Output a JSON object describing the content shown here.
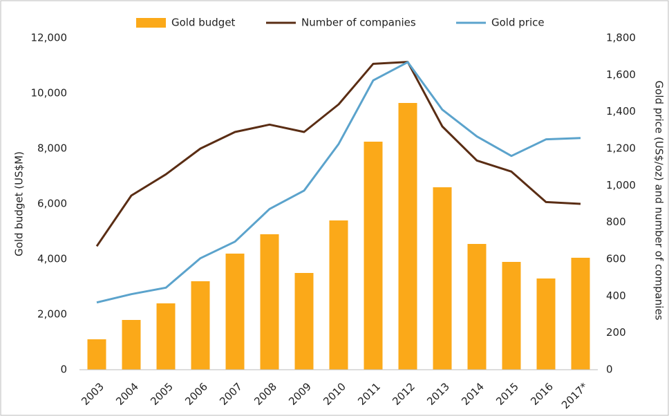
{
  "chart_data": {
    "type": "bar",
    "categories": [
      "2003",
      "2004",
      "2005",
      "2006",
      "2007",
      "2008",
      "2009",
      "2010",
      "2011",
      "2012",
      "2013",
      "2014",
      "2015",
      "2016",
      "2017*"
    ],
    "series": [
      {
        "name": "Gold budget",
        "type": "bar",
        "axis": "y",
        "color": "#fba919",
        "values": [
          1100,
          1800,
          2400,
          3200,
          4200,
          4900,
          3500,
          5400,
          8250,
          9650,
          6600,
          4550,
          3900,
          3300,
          4050
        ]
      },
      {
        "name": "Number of companies",
        "type": "line",
        "axis": "y2",
        "color": "#5a2d14",
        "values": [
          670,
          945,
          1060,
          1200,
          1290,
          1330,
          1290,
          1440,
          1660,
          1670,
          1320,
          1135,
          1075,
          910,
          900
        ]
      },
      {
        "name": "Gold price",
        "type": "line",
        "axis": "y2",
        "color": "#5ba3cc",
        "values": [
          365,
          410,
          445,
          605,
          695,
          872,
          972,
          1225,
          1570,
          1669,
          1411,
          1266,
          1160,
          1250,
          1257
        ]
      }
    ],
    "ylabel": "Gold budget (US$M)",
    "y2label": "Gold price (US$/oz) and number of companies",
    "ylim": [
      0,
      12000
    ],
    "yticks": [
      0,
      {
        "value": 2000,
        "label": "2,000"
      },
      {
        "value": 4000,
        "label": "4,000"
      },
      {
        "value": 6000,
        "label": "6,000"
      },
      {
        "value": 8000,
        "label": "8,000"
      },
      {
        "value": 10000,
        "label": "10,000"
      },
      {
        "value": 12000,
        "label": "12,000"
      }
    ],
    "y2lim": [
      0,
      1800
    ],
    "y2ticks": [
      0,
      200,
      400,
      600,
      800,
      {
        "value": 1000,
        "label": "1,000"
      },
      {
        "value": 1200,
        "label": "1,200"
      },
      {
        "value": 1400,
        "label": "1,400"
      },
      {
        "value": 1600,
        "label": "1,600"
      },
      {
        "value": 1800,
        "label": "1,800"
      }
    ],
    "legend": "top",
    "grid": false
  }
}
